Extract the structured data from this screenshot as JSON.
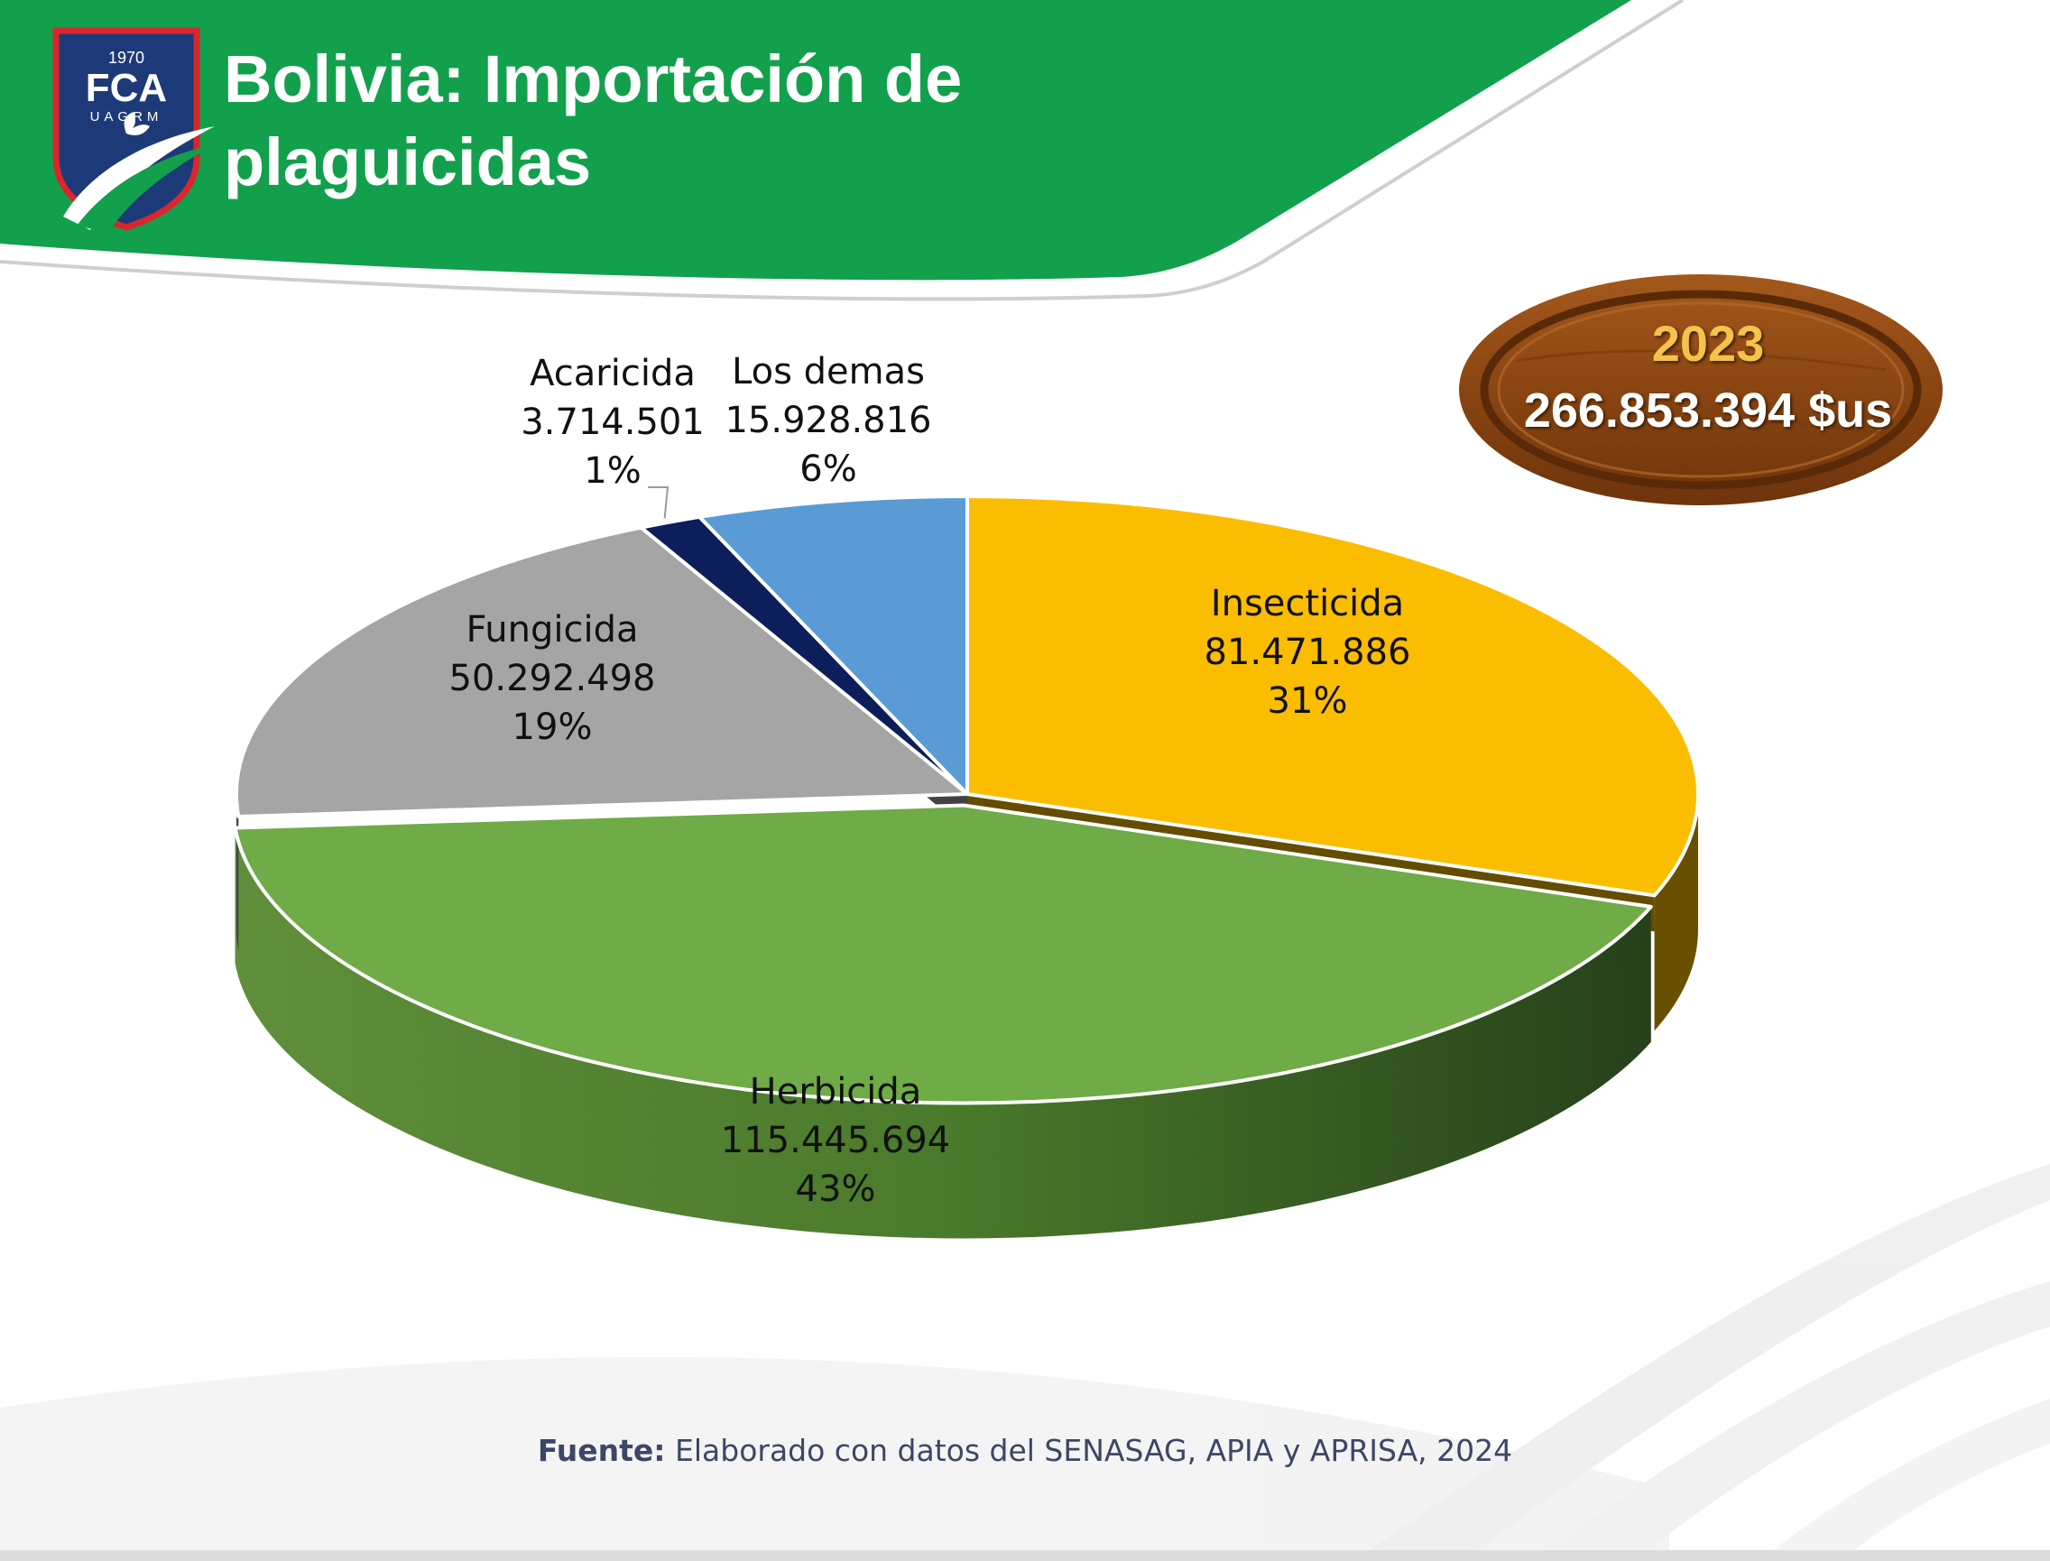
{
  "header": {
    "title_line1": "Bolivia: Importación de",
    "title_line2": "plaguicidas"
  },
  "logo": {
    "year": "1970",
    "initials": "FCA",
    "subtitle": "UAGRM"
  },
  "badge": {
    "year": "2023",
    "total": "266.853.394 $us"
  },
  "source": {
    "label": "Fuente:",
    "text": "Elaborado con datos del SENASAG, APIA y APRISA, 2024"
  },
  "colors": {
    "header_green": "#12a04d",
    "insecticida": "#fbbd00",
    "herbicida": "#6fab46",
    "fungicida": "#a5a5a5",
    "acaricida": "#0c1f5a",
    "los_demas": "#5b9bd5",
    "wood": "#8b4513"
  },
  "chart_data": {
    "type": "pie",
    "style": "3d",
    "title": "Bolivia: Importación de plaguicidas",
    "year": "2023",
    "total": 266853394,
    "unit": "$us",
    "slices": [
      {
        "key": "insecticida",
        "label": "Insecticida",
        "value": 81471886,
        "value_text": "81.471.886",
        "percent_text": "31%",
        "color": "#fbbd00"
      },
      {
        "key": "herbicida",
        "label": "Herbicida",
        "value": 115445694,
        "value_text": "115.445.694",
        "percent_text": "43%",
        "color": "#6fab46"
      },
      {
        "key": "fungicida",
        "label": "Fungicida",
        "value": 50292498,
        "value_text": "50.292.498",
        "percent_text": "19%",
        "color": "#a5a5a5"
      },
      {
        "key": "acaricida",
        "label": "Acaricida",
        "value": 3714501,
        "value_text": "3.714.501",
        "percent_text": "1%",
        "color": "#0c1f5a"
      },
      {
        "key": "los_demas",
        "label": "Los demas",
        "value": 15928816,
        "value_text": "15.928.816",
        "percent_text": "6%",
        "color": "#5b9bd5"
      }
    ]
  }
}
